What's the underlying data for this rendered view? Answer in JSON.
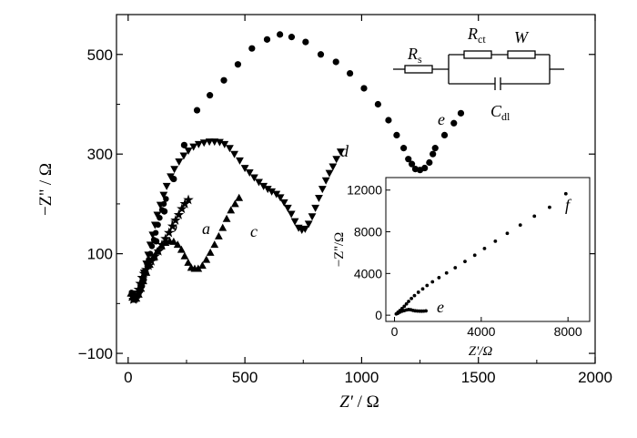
{
  "chart_data": [
    {
      "type": "scatter",
      "xlabel_main": "Z'",
      "xlabel_unit": " / Ω",
      "ylabel": "−Z'' / Ω",
      "xlim": [
        -50,
        2000
      ],
      "ylim": [
        -120,
        580
      ],
      "xticks": [
        0,
        500,
        1000,
        1500,
        2000
      ],
      "xtick_labels": [
        "0",
        "500",
        "1000",
        "1500",
        "2000"
      ],
      "yticks": [
        -100,
        100,
        300,
        500
      ],
      "ytick_labels": [
        "−100",
        "100",
        "300",
        "500"
      ],
      "series": [
        {
          "name": "a",
          "marker": "star",
          "points": [
            [
              18,
              14
            ],
            [
              23,
              8
            ],
            [
              30,
              12
            ],
            [
              38,
              18
            ],
            [
              45,
              28
            ],
            [
              52,
              40
            ],
            [
              60,
              52
            ],
            [
              68,
              60
            ],
            [
              77,
              68
            ],
            [
              88,
              76
            ],
            [
              100,
              85
            ],
            [
              115,
              95
            ],
            [
              130,
              105
            ],
            [
              145,
              118
            ],
            [
              160,
              130
            ],
            [
              175,
              142
            ],
            [
              190,
              155
            ],
            [
              203,
              167
            ],
            [
              217,
              178
            ],
            [
              230,
              190
            ],
            [
              243,
              200
            ],
            [
              258,
              208
            ]
          ]
        },
        {
          "name": "b",
          "marker": "circle",
          "points": [
            [
              15,
              22
            ],
            [
              22,
              15
            ],
            [
              30,
              12
            ],
            [
              38,
              14
            ],
            [
              45,
              18
            ],
            [
              52,
              25
            ],
            [
              60,
              35
            ],
            [
              68,
              48
            ],
            [
              75,
              62
            ],
            [
              82,
              75
            ],
            [
              88,
              88
            ],
            [
              95,
              100
            ],
            [
              102,
              115
            ],
            [
              110,
              128
            ],
            [
              118,
              142
            ],
            [
              128,
              158
            ],
            [
              135,
              172
            ],
            [
              145,
              188
            ],
            [
              153,
              200
            ],
            [
              162,
              210
            ]
          ]
        },
        {
          "name": "c",
          "marker": "triangle-up",
          "points": [
            [
              12,
              20
            ],
            [
              18,
              12
            ],
            [
              25,
              8
            ],
            [
              35,
              10
            ],
            [
              45,
              18
            ],
            [
              55,
              30
            ],
            [
              65,
              45
            ],
            [
              78,
              62
            ],
            [
              92,
              78
            ],
            [
              108,
              92
            ],
            [
              125,
              105
            ],
            [
              142,
              115
            ],
            [
              160,
              122
            ],
            [
              178,
              125
            ],
            [
              195,
              124
            ],
            [
              212,
              118
            ],
            [
              228,
              108
            ],
            [
              242,
              95
            ],
            [
              257,
              82
            ],
            [
              270,
              72
            ],
            [
              285,
              70
            ],
            [
              300,
              70
            ],
            [
              318,
              76
            ],
            [
              335,
              88
            ],
            [
              352,
              102
            ],
            [
              370,
              118
            ],
            [
              388,
              135
            ],
            [
              405,
              152
            ],
            [
              422,
              170
            ],
            [
              440,
              187
            ],
            [
              458,
              200
            ],
            [
              475,
              212
            ]
          ]
        },
        {
          "name": "d",
          "marker": "triangle-down",
          "points": [
            [
              20,
              20
            ],
            [
              28,
              15
            ],
            [
              38,
              14
            ],
            [
              48,
              20
            ],
            [
              55,
              32
            ],
            [
              62,
              48
            ],
            [
              68,
              62
            ],
            [
              78,
              80
            ],
            [
              86,
              98
            ],
            [
              95,
              118
            ],
            [
              105,
              138
            ],
            [
              115,
              158
            ],
            [
              125,
              178
            ],
            [
              138,
              198
            ],
            [
              152,
              218
            ],
            [
              165,
              236
            ],
            [
              182,
              255
            ],
            [
              198,
              270
            ],
            [
              218,
              285
            ],
            [
              238,
              297
            ],
            [
              258,
              307
            ],
            [
              280,
              315
            ],
            [
              302,
              320
            ],
            [
              325,
              323
            ],
            [
              348,
              325
            ],
            [
              370,
              325
            ],
            [
              392,
              324
            ],
            [
              413,
              320
            ],
            [
              435,
              312
            ],
            [
              455,
              300
            ],
            [
              478,
              287
            ],
            [
              500,
              272
            ],
            [
              520,
              263
            ],
            [
              540,
              253
            ],
            [
              560,
              244
            ],
            [
              580,
              236
            ],
            [
              598,
              230
            ],
            [
              615,
              225
            ],
            [
              635,
              220
            ],
            [
              652,
              213
            ],
            [
              668,
              203
            ],
            [
              684,
              192
            ],
            [
              699,
              180
            ],
            [
              714,
              165
            ],
            [
              730,
              152
            ],
            [
              744,
              148
            ],
            [
              758,
              150
            ],
            [
              773,
              160
            ],
            [
              788,
              175
            ],
            [
              802,
              192
            ],
            [
              817,
              212
            ],
            [
              832,
              230
            ],
            [
              847,
              247
            ],
            [
              862,
              262
            ],
            [
              877,
              275
            ],
            [
              892,
              290
            ],
            [
              910,
              305
            ]
          ]
        },
        {
          "name": "e",
          "marker": "circle",
          "points": [
            [
              120,
              125
            ],
            [
              155,
              185
            ],
            [
              195,
              250
            ],
            [
              240,
              318
            ],
            [
              295,
              388
            ],
            [
              350,
              418
            ],
            [
              410,
              448
            ],
            [
              470,
              480
            ],
            [
              530,
              512
            ],
            [
              595,
              530
            ],
            [
              650,
              540
            ],
            [
              700,
              535
            ],
            [
              760,
              525
            ],
            [
              825,
              500
            ],
            [
              890,
              485
            ],
            [
              950,
              462
            ],
            [
              1010,
              432
            ],
            [
              1070,
              400
            ],
            [
              1115,
              368
            ],
            [
              1150,
              338
            ],
            [
              1180,
              312
            ],
            [
              1200,
              290
            ],
            [
              1215,
              280
            ],
            [
              1230,
              270
            ],
            [
              1250,
              268
            ],
            [
              1270,
              272
            ],
            [
              1290,
              283
            ],
            [
              1305,
              300
            ],
            [
              1315,
              312
            ],
            [
              1355,
              338
            ],
            [
              1395,
              362
            ],
            [
              1425,
              382
            ]
          ]
        }
      ],
      "labels": [
        "a",
        "b",
        "c",
        "d",
        "e"
      ]
    },
    {
      "type": "scatter",
      "inset": true,
      "xlabel": "Z'/Ω",
      "ylabel": "−Z''/Ω",
      "xlim": [
        -400,
        9000
      ],
      "ylim": [
        -600,
        13200
      ],
      "xticks": [
        0,
        4000,
        8000
      ],
      "xtick_labels": [
        "0",
        "4000",
        "8000"
      ],
      "yticks": [
        0,
        4000,
        8000,
        12000
      ],
      "ytick_labels": [
        "0",
        "4000",
        "8000",
        "12000"
      ],
      "series": [
        {
          "name": "e",
          "marker": "circle",
          "points": [
            [
              150,
              180
            ],
            [
              250,
              290
            ],
            [
              350,
              380
            ],
            [
              450,
              440
            ],
            [
              550,
              500
            ],
            [
              650,
              540
            ],
            [
              750,
              520
            ],
            [
              850,
              460
            ],
            [
              950,
              420
            ],
            [
              1050,
              400
            ],
            [
              1150,
              390
            ],
            [
              1250,
              388
            ],
            [
              1350,
              395
            ],
            [
              1450,
              410
            ]
          ]
        },
        {
          "name": "f",
          "marker": "circle",
          "points": [
            [
              80,
              120
            ],
            [
              160,
              280
            ],
            [
              250,
              450
            ],
            [
              350,
              640
            ],
            [
              450,
              850
            ],
            [
              550,
              1080
            ],
            [
              650,
              1320
            ],
            [
              780,
              1600
            ],
            [
              920,
              1880
            ],
            [
              1100,
              2200
            ],
            [
              1300,
              2520
            ],
            [
              1500,
              2850
            ],
            [
              1750,
              3200
            ],
            [
              2050,
              3600
            ],
            [
              2400,
              4050
            ],
            [
              2800,
              4550
            ],
            [
              3250,
              5150
            ],
            [
              3700,
              5750
            ],
            [
              4150,
              6400
            ],
            [
              4650,
              7100
            ],
            [
              5200,
              7850
            ],
            [
              5800,
              8650
            ],
            [
              6450,
              9500
            ],
            [
              7150,
              10350
            ],
            [
              7900,
              11650
            ]
          ]
        }
      ],
      "labels": [
        "e",
        "f"
      ]
    }
  ],
  "circuit": {
    "labels": [
      {
        "main": "R",
        "sub": "s"
      },
      {
        "main": "R",
        "sub": "ct"
      },
      {
        "main": "W",
        "sub": ""
      },
      {
        "main": "C",
        "sub": "dl"
      }
    ]
  }
}
